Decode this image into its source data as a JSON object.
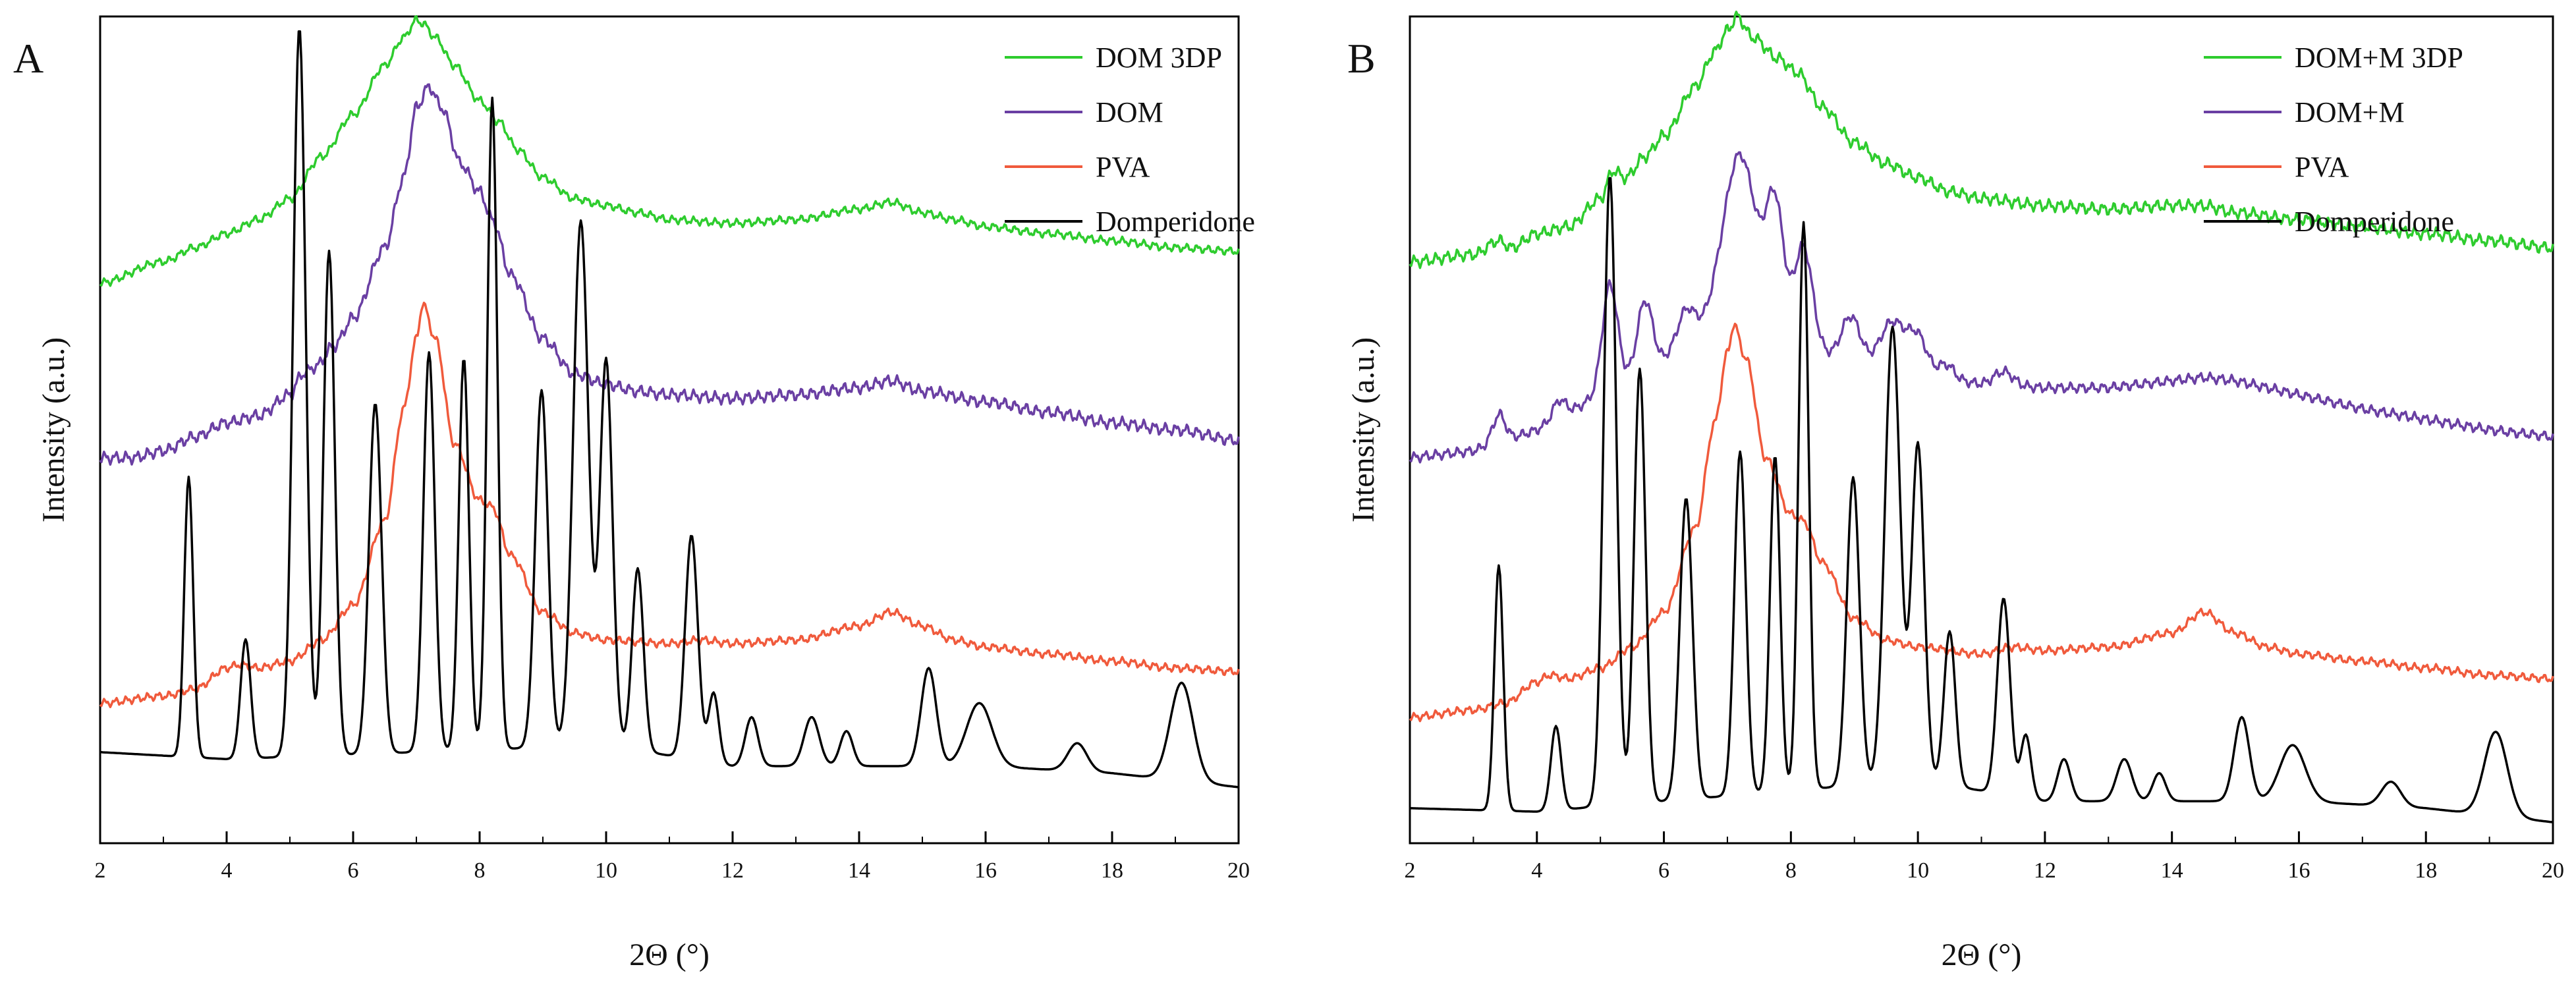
{
  "chart_data": [
    {
      "type": "line",
      "panel_label": "A",
      "xlabel": "2Θ (°)",
      "ylabel": "Intensity (a.u.)",
      "xlim": [
        2,
        20
      ],
      "xticks": [
        2,
        4,
        6,
        8,
        10,
        12,
        14,
        16,
        18,
        20
      ],
      "ylim": [
        0,
        1.18
      ],
      "ytick_labels": false,
      "legend_position": "top-right",
      "legend": [
        "DOM 3DP",
        "DOM",
        "PVA",
        "Domperidone"
      ],
      "series": [
        {
          "name": "DOM 3DP",
          "color": "#2ecc2e",
          "noise": 0.004,
          "x": [
            2,
            3,
            3.5,
            4,
            4.5,
            5,
            5.5,
            6,
            6.5,
            6.8,
            7.0,
            7.1,
            7.3,
            7.6,
            8,
            8.3,
            8.6,
            9,
            9.5,
            10,
            10.5,
            11,
            12,
            13,
            14,
            14.5,
            15,
            15.5,
            16,
            17,
            18,
            19,
            20
          ],
          "y": [
            0.8,
            0.83,
            0.85,
            0.87,
            0.89,
            0.92,
            0.98,
            1.04,
            1.11,
            1.15,
            1.175,
            1.17,
            1.15,
            1.11,
            1.06,
            1.03,
            0.99,
            0.95,
            0.92,
            0.91,
            0.9,
            0.89,
            0.885,
            0.89,
            0.905,
            0.915,
            0.9,
            0.89,
            0.88,
            0.87,
            0.86,
            0.85,
            0.845
          ]
        },
        {
          "name": "DOM",
          "color": "#6a3fa3",
          "noise": 0.006,
          "x": [
            2,
            2.5,
            3,
            3.5,
            4,
            4.5,
            5,
            5.2,
            5.4,
            5.7,
            6,
            6.5,
            6.8,
            7.0,
            7.2,
            7.4,
            7.7,
            8,
            8.2,
            8.5,
            9,
            9.5,
            10,
            10.5,
            11,
            12,
            13,
            14,
            14.5,
            15,
            16,
            17,
            18,
            19,
            20
          ],
          "y": [
            0.55,
            0.55,
            0.56,
            0.58,
            0.6,
            0.61,
            0.64,
            0.67,
            0.68,
            0.71,
            0.75,
            0.85,
            0.95,
            1.05,
            1.08,
            1.05,
            0.97,
            0.93,
            0.89,
            0.81,
            0.72,
            0.67,
            0.655,
            0.645,
            0.64,
            0.635,
            0.64,
            0.65,
            0.66,
            0.645,
            0.63,
            0.615,
            0.6,
            0.59,
            0.575
          ]
        },
        {
          "name": "PVA",
          "color": "#f05a3c",
          "noise": 0.004,
          "x": [
            2,
            3,
            3.5,
            4,
            4.2,
            4.5,
            5,
            5.5,
            6,
            6.5,
            6.8,
            7.0,
            7.1,
            7.3,
            7.6,
            8,
            8.2,
            8.5,
            9,
            9.5,
            10,
            11,
            11.5,
            12,
            13,
            14,
            14.5,
            15,
            15.5,
            16,
            17,
            18,
            19,
            20
          ],
          "y": [
            0.2,
            0.21,
            0.22,
            0.25,
            0.255,
            0.25,
            0.26,
            0.29,
            0.34,
            0.46,
            0.62,
            0.72,
            0.77,
            0.72,
            0.57,
            0.49,
            0.48,
            0.41,
            0.33,
            0.3,
            0.29,
            0.285,
            0.29,
            0.285,
            0.29,
            0.31,
            0.33,
            0.31,
            0.29,
            0.28,
            0.27,
            0.26,
            0.25,
            0.245
          ]
        },
        {
          "name": "Domperidone",
          "color": "#000000",
          "noise": 0,
          "baseline": [
            [
              2,
              0.13
            ],
            [
              4,
              0.12
            ],
            [
              10,
              0.14
            ],
            [
              12,
              0.11
            ],
            [
              16,
              0.11
            ],
            [
              18,
              0.1
            ],
            [
              20,
              0.08
            ]
          ],
          "peaks": [
            [
              3.4,
              0.4,
              0.07
            ],
            [
              4.3,
              0.17,
              0.08
            ],
            [
              5.15,
              1.04,
              0.1
            ],
            [
              5.62,
              0.72,
              0.09
            ],
            [
              6.35,
              0.5,
              0.1
            ],
            [
              7.2,
              0.57,
              0.09
            ],
            [
              7.75,
              0.56,
              0.08
            ],
            [
              8.2,
              0.93,
              0.08
            ],
            [
              8.98,
              0.51,
              0.1
            ],
            [
              9.6,
              0.75,
              0.12
            ],
            [
              10.0,
              0.55,
              0.1
            ],
            [
              10.5,
              0.26,
              0.09
            ],
            [
              11.35,
              0.32,
              0.1
            ],
            [
              11.7,
              0.1,
              0.08
            ],
            [
              12.3,
              0.07,
              0.1
            ],
            [
              13.25,
              0.07,
              0.12
            ],
            [
              13.8,
              0.05,
              0.1
            ],
            [
              15.1,
              0.14,
              0.12
            ],
            [
              15.9,
              0.09,
              0.2
            ],
            [
              17.45,
              0.04,
              0.15
            ],
            [
              19.1,
              0.14,
              0.18
            ]
          ]
        }
      ]
    },
    {
      "type": "line",
      "panel_label": "B",
      "xlabel": "2Θ (°)",
      "ylabel": "Intensity (a.u.)",
      "xlim": [
        2,
        20
      ],
      "xticks": [
        2,
        4,
        6,
        8,
        10,
        12,
        14,
        16,
        18,
        20
      ],
      "ylim": [
        0,
        1.18
      ],
      "ytick_labels": false,
      "legend_position": "top-right",
      "legend": [
        "DOM+M 3DP",
        "DOM+M",
        "PVA",
        "Domperidone"
      ],
      "series": [
        {
          "name": "DOM+M 3DP",
          "color": "#2ecc2e",
          "noise": 0.006,
          "x": [
            2,
            3,
            3.4,
            3.6,
            4,
            4.5,
            5,
            5.2,
            5.4,
            5.7,
            6,
            6.5,
            6.8,
            7.0,
            7.15,
            7.4,
            7.8,
            8.1,
            8.5,
            9,
            9.5,
            10,
            10.5,
            11,
            12,
            13,
            14,
            14.5,
            15,
            16,
            17,
            18,
            19,
            20
          ],
          "y": [
            0.83,
            0.84,
            0.86,
            0.85,
            0.87,
            0.88,
            0.92,
            0.96,
            0.95,
            0.98,
            1.01,
            1.08,
            1.13,
            1.16,
            1.18,
            1.15,
            1.12,
            1.1,
            1.05,
            1.0,
            0.97,
            0.95,
            0.93,
            0.92,
            0.91,
            0.905,
            0.91,
            0.91,
            0.9,
            0.89,
            0.88,
            0.87,
            0.86,
            0.85
          ]
        },
        {
          "name": "DOM+M",
          "color": "#6a3fa3",
          "noise": 0.005,
          "baseline": [
            [
              2,
              0.55
            ],
            [
              3,
              0.56
            ],
            [
              4,
              0.59
            ],
            [
              5,
              0.64
            ],
            [
              6,
              0.69
            ],
            [
              6.8,
              0.74
            ],
            [
              8,
              0.72
            ],
            [
              9,
              0.68
            ],
            [
              10,
              0.67
            ],
            [
              11,
              0.655
            ],
            [
              12,
              0.65
            ],
            [
              13,
              0.65
            ],
            [
              14,
              0.66
            ],
            [
              14.5,
              0.665
            ],
            [
              15,
              0.66
            ],
            [
              16,
              0.64
            ],
            [
              17,
              0.62
            ],
            [
              18,
              0.605
            ],
            [
              19,
              0.59
            ],
            [
              20,
              0.58
            ]
          ],
          "peaks": [
            [
              3.4,
              0.04,
              0.1
            ],
            [
              4.35,
              0.025,
              0.1
            ],
            [
              5.15,
              0.15,
              0.12
            ],
            [
              5.7,
              0.1,
              0.12
            ],
            [
              6.35,
              0.05,
              0.14
            ],
            [
              7.2,
              0.25,
              0.26
            ],
            [
              7.75,
              0.18,
              0.14
            ],
            [
              8.2,
              0.14,
              0.14
            ],
            [
              8.95,
              0.07,
              0.15
            ],
            [
              9.6,
              0.07,
              0.2
            ],
            [
              10.0,
              0.05,
              0.15
            ],
            [
              10.45,
              0.02,
              0.12
            ],
            [
              11.35,
              0.02,
              0.15
            ]
          ]
        },
        {
          "name": "PVA",
          "color": "#f05a3c",
          "noise": 0.004,
          "x": [
            2,
            3,
            3.5,
            4,
            4.2,
            4.5,
            5,
            5.5,
            6,
            6.5,
            6.8,
            7.0,
            7.1,
            7.3,
            7.6,
            8,
            8.2,
            8.5,
            9,
            9.5,
            10,
            11,
            11.5,
            12,
            13,
            14,
            14.5,
            15,
            15.5,
            16,
            17,
            18,
            19,
            20
          ],
          "y": [
            0.18,
            0.19,
            0.2,
            0.23,
            0.24,
            0.235,
            0.25,
            0.28,
            0.33,
            0.45,
            0.6,
            0.7,
            0.74,
            0.69,
            0.55,
            0.47,
            0.46,
            0.4,
            0.32,
            0.29,
            0.28,
            0.27,
            0.28,
            0.275,
            0.28,
            0.3,
            0.33,
            0.3,
            0.28,
            0.27,
            0.26,
            0.25,
            0.24,
            0.235
          ]
        },
        {
          "name": "Domperidone",
          "color": "#000000",
          "noise": 0,
          "baseline": [
            [
              2,
              0.05
            ],
            [
              4,
              0.045
            ],
            [
              10,
              0.09
            ],
            [
              12,
              0.06
            ],
            [
              16,
              0.06
            ],
            [
              18,
              0.05
            ],
            [
              20,
              0.03
            ]
          ],
          "peaks": [
            [
              3.4,
              0.35,
              0.07
            ],
            [
              4.3,
              0.12,
              0.08
            ],
            [
              5.15,
              0.9,
              0.1
            ],
            [
              5.62,
              0.62,
              0.09
            ],
            [
              6.35,
              0.43,
              0.1
            ],
            [
              7.2,
              0.49,
              0.09
            ],
            [
              7.75,
              0.48,
              0.08
            ],
            [
              8.2,
              0.81,
              0.08
            ],
            [
              8.98,
              0.44,
              0.1
            ],
            [
              9.6,
              0.65,
              0.12
            ],
            [
              10.0,
              0.48,
              0.1
            ],
            [
              10.5,
              0.22,
              0.09
            ],
            [
              11.35,
              0.28,
              0.1
            ],
            [
              11.7,
              0.09,
              0.08
            ],
            [
              12.3,
              0.06,
              0.1
            ],
            [
              13.25,
              0.06,
              0.12
            ],
            [
              13.8,
              0.04,
              0.1
            ],
            [
              15.1,
              0.12,
              0.12
            ],
            [
              15.9,
              0.08,
              0.2
            ],
            [
              17.45,
              0.035,
              0.15
            ],
            [
              19.1,
              0.12,
              0.18
            ]
          ]
        }
      ]
    }
  ]
}
